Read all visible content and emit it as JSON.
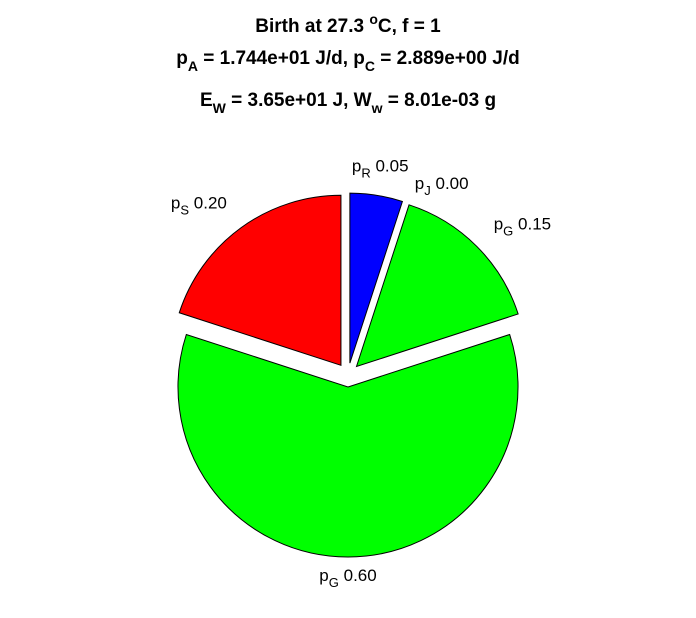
{
  "chart_data": {
    "type": "pie",
    "title_lines": [
      [
        {
          "text": "Birth at 27.3 ",
          "role": "base"
        },
        {
          "text": "o",
          "role": "sup"
        },
        {
          "text": "C, f = 1",
          "role": "base"
        }
      ],
      [
        {
          "text": "p",
          "role": "base"
        },
        {
          "text": "A",
          "role": "sub"
        },
        {
          "text": " = 1.744e+01 J/d, p",
          "role": "base"
        },
        {
          "text": "C",
          "role": "sub"
        },
        {
          "text": " = 2.889e+00 J/d",
          "role": "base"
        }
      ],
      [
        {
          "text": "E",
          "role": "base"
        },
        {
          "text": "W",
          "role": "sub"
        },
        {
          "text": " = 3.65e+01 J, W",
          "role": "base"
        },
        {
          "text": "w",
          "role": "sub"
        },
        {
          "text": " = 8.01e-03 g",
          "role": "base"
        }
      ]
    ],
    "slices": [
      {
        "symbol": "p",
        "subscript": "R",
        "value": "0.05",
        "fraction": 0.05,
        "color": "#0000ff",
        "exploded": true
      },
      {
        "symbol": "p",
        "subscript": "J",
        "value": "0.00",
        "fraction": 0.0,
        "color": "#ffffff",
        "exploded": true
      },
      {
        "symbol": "p",
        "subscript": "G",
        "value": "0.15",
        "fraction": 0.15,
        "color": "#00ff00",
        "exploded": true
      },
      {
        "symbol": "p",
        "subscript": "G",
        "value": "0.60",
        "fraction": 0.6,
        "color": "#00ff00",
        "exploded": true
      },
      {
        "symbol": "p",
        "subscript": "S",
        "value": "0.20",
        "fraction": 0.2,
        "color": "#ff0000",
        "exploded": true
      }
    ],
    "start": "top",
    "direction": "clockwise"
  }
}
